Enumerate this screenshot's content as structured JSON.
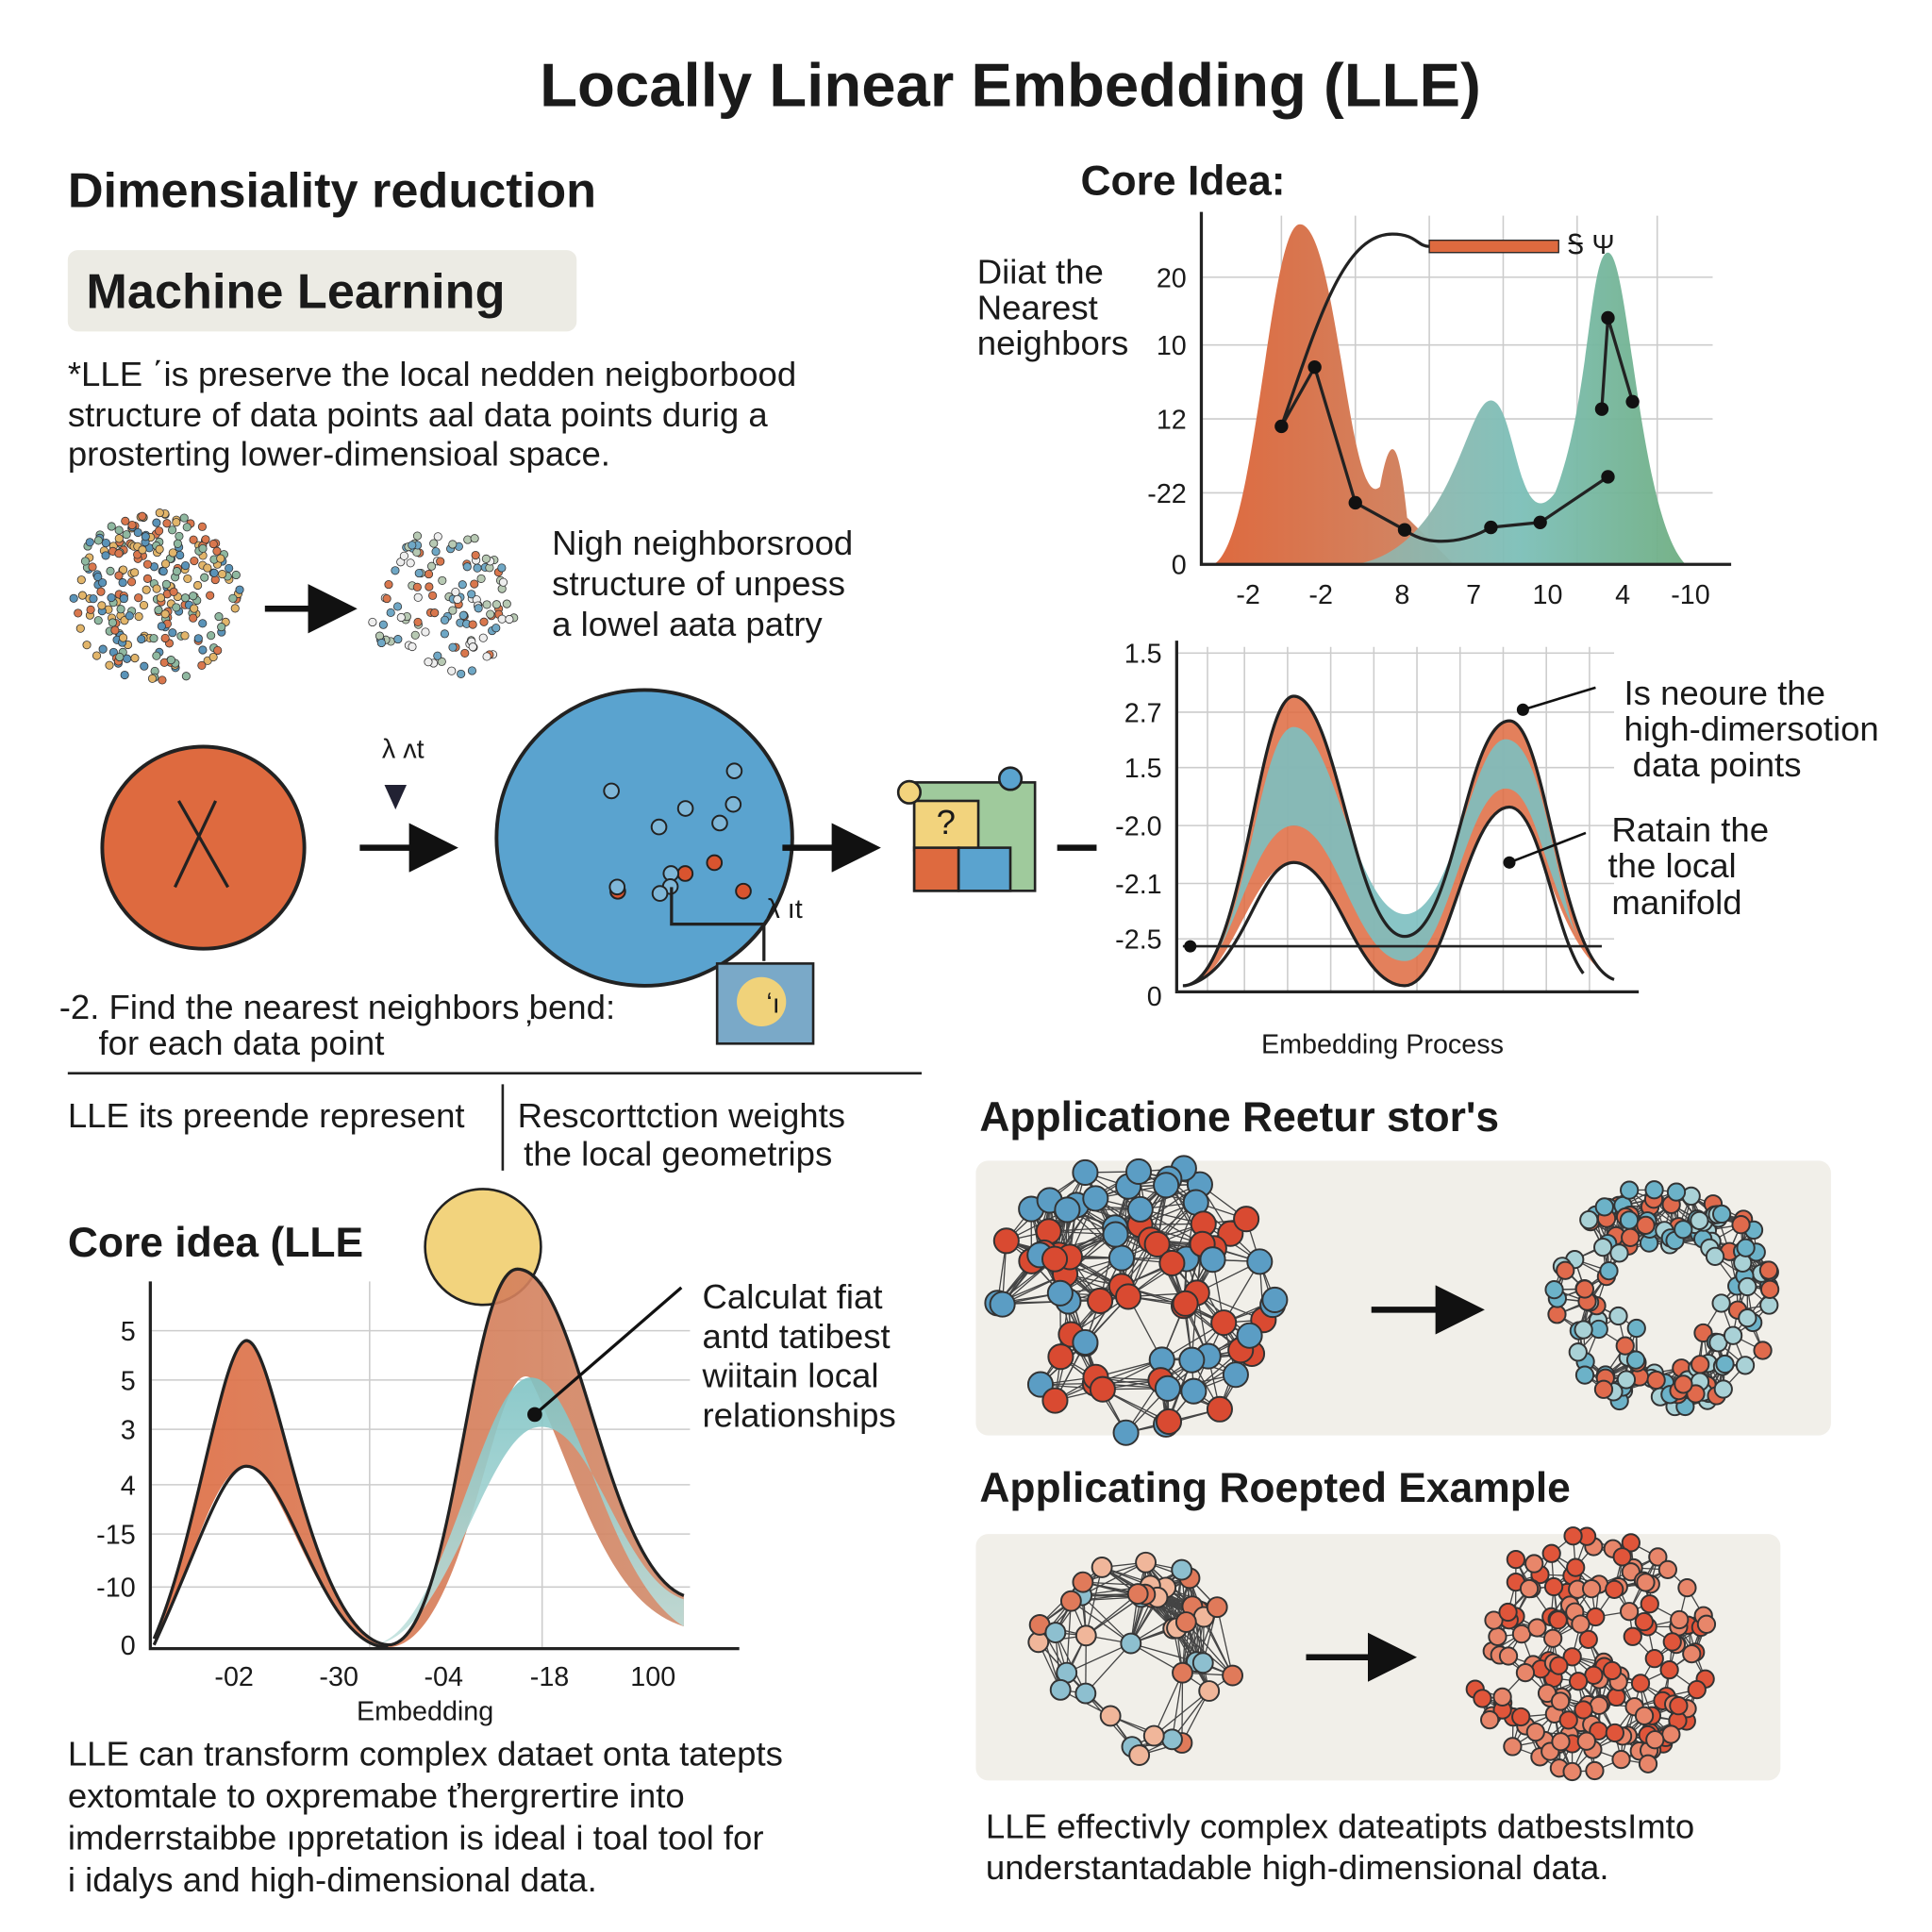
{
  "title": "Locally Linear Embedding (LLE)",
  "left": {
    "heading": "Dimensiality reduction",
    "tag": "Machine Learning",
    "intro": [
      "*LLE ΄is preserve the local nedden neigborbood",
      "structure of data points aal data points durig a",
      "prosterting lower-dimensioal space."
    ],
    "neighbor_caption": [
      "Nigh neighborsrood",
      "structure of unpess",
      "a lowel aata patry"
    ],
    "step_marks": [
      "λ ʌt",
      "λ ıt",
      "?",
      "ʻı"
    ],
    "step": [
      "-2. Find the nearest neighbors ̦bend:",
      "for each data point"
    ],
    "table": {
      "left": "LLE its preende represent",
      "right": [
        "Rescorttction weights",
        "the local geometrips"
      ]
    },
    "core": {
      "heading": "Core idea (LLE",
      "yticks": [
        "5",
        "5",
        "3",
        "4",
        "-15",
        "-10",
        "0"
      ],
      "xticks": [
        "-02",
        "-30",
        "-04",
        "-18",
        "100"
      ],
      "xlabel": "Embedding",
      "annotation": [
        "Calculat fiat",
        "antd tatibest",
        "wiitain local",
        "relationships"
      ]
    },
    "summary": [
      "LLE can transform complex dataet onta tatepts",
      "extomtale to oxpremabe ťhergrertire into",
      "imderrstaibbe ıppretation is ideal i toal tool for",
      "i idalys and high-dimensional data."
    ]
  },
  "right": {
    "heading": "Core Idea:",
    "annotation": [
      "Diiat the",
      "Nearest",
      "neighbors"
    ],
    "legend": "Ꭶ Ψ",
    "chart1": {
      "yticks": [
        "20",
        "10",
        "12",
        "-22",
        "0"
      ],
      "xticks": [
        "-2",
        "-2",
        "8",
        "7",
        "10",
        "4",
        "-10"
      ]
    },
    "chart2": {
      "yticks": [
        "1.5",
        "2.7",
        "1.5",
        "-2.0",
        "-2.1",
        "-2.5",
        "0"
      ],
      "xlabel": "Embedding Process",
      "notes": [
        [
          "Is neoure the",
          "high-dimersotion",
          "data points"
        ],
        [
          "Ratain the",
          "the local",
          "manifold"
        ]
      ]
    },
    "apps": {
      "heading1": "Applicatione Reetur stor's",
      "heading2": "Applicating Roepted Example",
      "summary": [
        "LLE effectivly complex dateatipts datbestsImto",
        "understantadable high-dimensional data."
      ]
    }
  }
}
